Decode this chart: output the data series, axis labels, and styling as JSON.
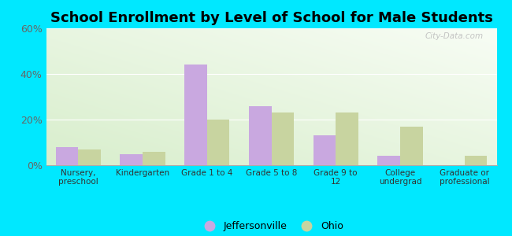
{
  "title": "School Enrollment by Level of School for Male Students",
  "categories": [
    "Nursery,\npreschool",
    "Kindergarten",
    "Grade 1 to 4",
    "Grade 5 to 8",
    "Grade 9 to\n12",
    "College\nundergrad",
    "Graduate or\nprofessional"
  ],
  "jeffersonville": [
    8,
    5,
    44,
    26,
    13,
    4,
    0
  ],
  "ohio": [
    7,
    6,
    20,
    23,
    23,
    17,
    4
  ],
  "bar_color_jeff": "#c9a8e0",
  "bar_color_ohio": "#c8d4a0",
  "background_outer": "#00e8ff",
  "ylim": [
    0,
    60
  ],
  "yticks": [
    0,
    20,
    40,
    60
  ],
  "ytick_labels": [
    "0%",
    "20%",
    "40%",
    "60%"
  ],
  "legend_jeff": "Jeffersonville",
  "legend_ohio": "Ohio",
  "title_fontsize": 13,
  "bar_width": 0.35
}
